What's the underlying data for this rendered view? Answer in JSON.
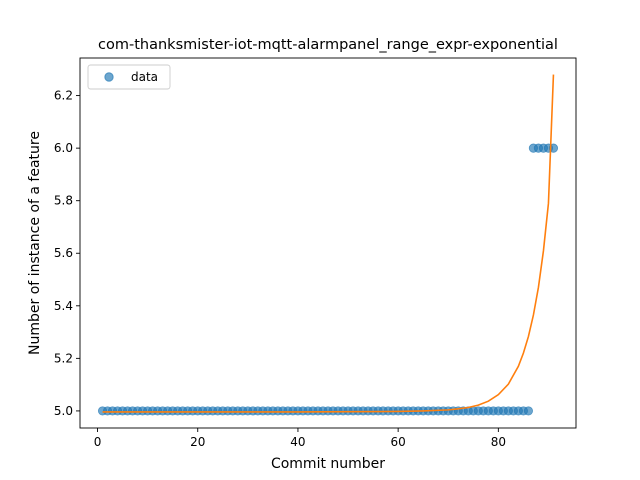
{
  "chart_data": {
    "type": "scatter",
    "title": "com-thanksmister-iot-mqtt-alarmpanel_range_expr-exponential",
    "xlabel": "Commit number",
    "ylabel": "Number of instance of a feature",
    "xlim": [
      -3.5,
      95.5
    ],
    "ylim": [
      4.935,
      6.343
    ],
    "xticks": [
      0,
      20,
      40,
      60,
      80
    ],
    "yticks": [
      5.0,
      5.2,
      5.4,
      5.6,
      5.8,
      6.0,
      6.2
    ],
    "ytick_labels": [
      "5.0",
      "5.2",
      "5.4",
      "5.6",
      "5.8",
      "6.0",
      "6.2"
    ],
    "legend": {
      "position": "top-left",
      "entries": [
        "data"
      ]
    },
    "series": [
      {
        "name": "data",
        "kind": "scatter",
        "color": "#1f77b4",
        "segments": [
          {
            "x_from": 1,
            "x_to": 86,
            "y": 5.0
          },
          {
            "x_from": 87,
            "x_to": 91,
            "y": 6.0
          }
        ]
      },
      {
        "kind": "line",
        "color": "#ff7f0e",
        "fit": "exponential",
        "points": [
          [
            1,
            4.996
          ],
          [
            10,
            4.996
          ],
          [
            20,
            4.996
          ],
          [
            30,
            4.996
          ],
          [
            40,
            4.996
          ],
          [
            50,
            4.997
          ],
          [
            60,
            4.998
          ],
          [
            65,
            5.0
          ],
          [
            70,
            5.004
          ],
          [
            72,
            5.008
          ],
          [
            74,
            5.013
          ],
          [
            76,
            5.022
          ],
          [
            78,
            5.037
          ],
          [
            80,
            5.062
          ],
          [
            82,
            5.102
          ],
          [
            84,
            5.17
          ],
          [
            85,
            5.22
          ],
          [
            86,
            5.283
          ],
          [
            87,
            5.365
          ],
          [
            88,
            5.47
          ],
          [
            89,
            5.609
          ],
          [
            90,
            5.79
          ],
          [
            91,
            6.28
          ]
        ]
      }
    ]
  }
}
